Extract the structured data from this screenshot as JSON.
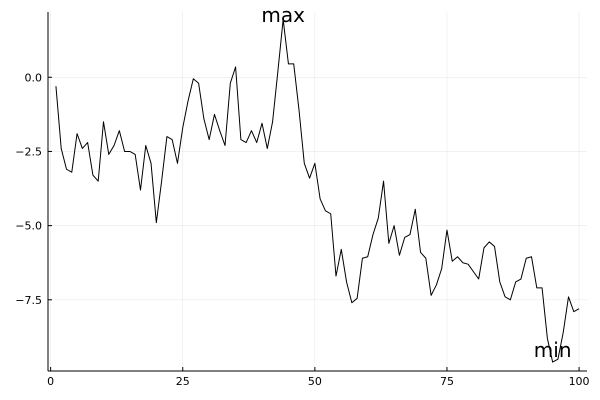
{
  "chart_data": {
    "type": "line",
    "title": "",
    "xlabel": "",
    "ylabel": "",
    "xlim": [
      -0.5,
      101.5
    ],
    "ylim": [
      -9.9,
      2.2
    ],
    "xticks": [
      0,
      25,
      50,
      75,
      100
    ],
    "xtick_labels": [
      "0",
      "25",
      "50",
      "75",
      "100"
    ],
    "yticks": [
      0.0,
      -2.5,
      -5.0,
      -7.5
    ],
    "ytick_labels": [
      "0.0",
      "−2.5",
      "−5.0",
      "−7.5"
    ],
    "grid": true,
    "legend": "none",
    "series_color": "#000000",
    "series": [
      {
        "x": [
          1,
          2,
          3,
          4,
          5,
          6,
          7,
          8,
          9,
          10,
          11,
          12,
          13,
          14,
          15,
          16,
          17,
          18,
          19,
          20,
          21,
          22,
          23,
          24,
          25,
          26,
          27,
          28,
          29,
          30,
          31,
          32,
          33,
          34,
          35,
          36,
          37,
          38,
          39,
          40,
          41,
          42,
          43,
          44,
          45,
          46,
          47,
          48,
          49,
          50,
          51,
          52,
          53,
          54,
          55,
          56,
          57,
          58,
          59,
          60,
          61,
          62,
          63,
          64,
          65,
          66,
          67,
          68,
          69,
          70,
          71,
          72,
          73,
          74,
          75,
          76,
          77,
          78,
          79,
          80,
          81,
          82,
          83,
          84,
          85,
          86,
          87,
          88,
          89,
          90,
          91,
          92,
          93,
          94,
          95,
          96,
          97,
          98,
          99,
          100
        ],
        "values": [
          -0.3,
          -2.4,
          -3.1,
          -3.2,
          -1.9,
          -2.4,
          -2.2,
          -3.3,
          -3.5,
          -1.5,
          -2.6,
          -2.3,
          -1.8,
          -2.5,
          -2.5,
          -2.6,
          -3.8,
          -2.3,
          -2.9,
          -4.9,
          -3.5,
          -2.0,
          -2.1,
          -2.9,
          -1.7,
          -0.8,
          -0.05,
          -0.2,
          -1.4,
          -2.1,
          -1.25,
          -1.8,
          -2.3,
          -0.2,
          0.35,
          -2.1,
          -2.2,
          -1.8,
          -2.2,
          -1.55,
          -2.4,
          -1.5,
          0.2,
          1.95,
          0.45,
          0.45,
          -1.1,
          -2.9,
          -3.4,
          -2.9,
          -4.1,
          -4.5,
          -4.6,
          -6.7,
          -5.8,
          -6.9,
          -7.6,
          -7.45,
          -6.1,
          -6.05,
          -5.3,
          -4.75,
          -3.5,
          -5.6,
          -5.0,
          -6.0,
          -5.4,
          -5.3,
          -4.45,
          -5.9,
          -6.1,
          -7.35,
          -7.0,
          -6.45,
          -5.15,
          -6.2,
          -6.05,
          -6.25,
          -6.3,
          -6.55,
          -6.8,
          -5.75,
          -5.55,
          -5.7,
          -6.9,
          -7.4,
          -7.5,
          -6.9,
          -6.8,
          -6.1,
          -6.05,
          -7.1,
          -7.1,
          -8.8,
          -9.6,
          -9.5,
          -8.6,
          -7.4,
          -7.9,
          -7.8
        ]
      }
    ],
    "annotations": [
      {
        "text": "max",
        "x": 44,
        "y": 2.1
      },
      {
        "text": "min",
        "x": 95,
        "y": -9.2
      }
    ]
  }
}
